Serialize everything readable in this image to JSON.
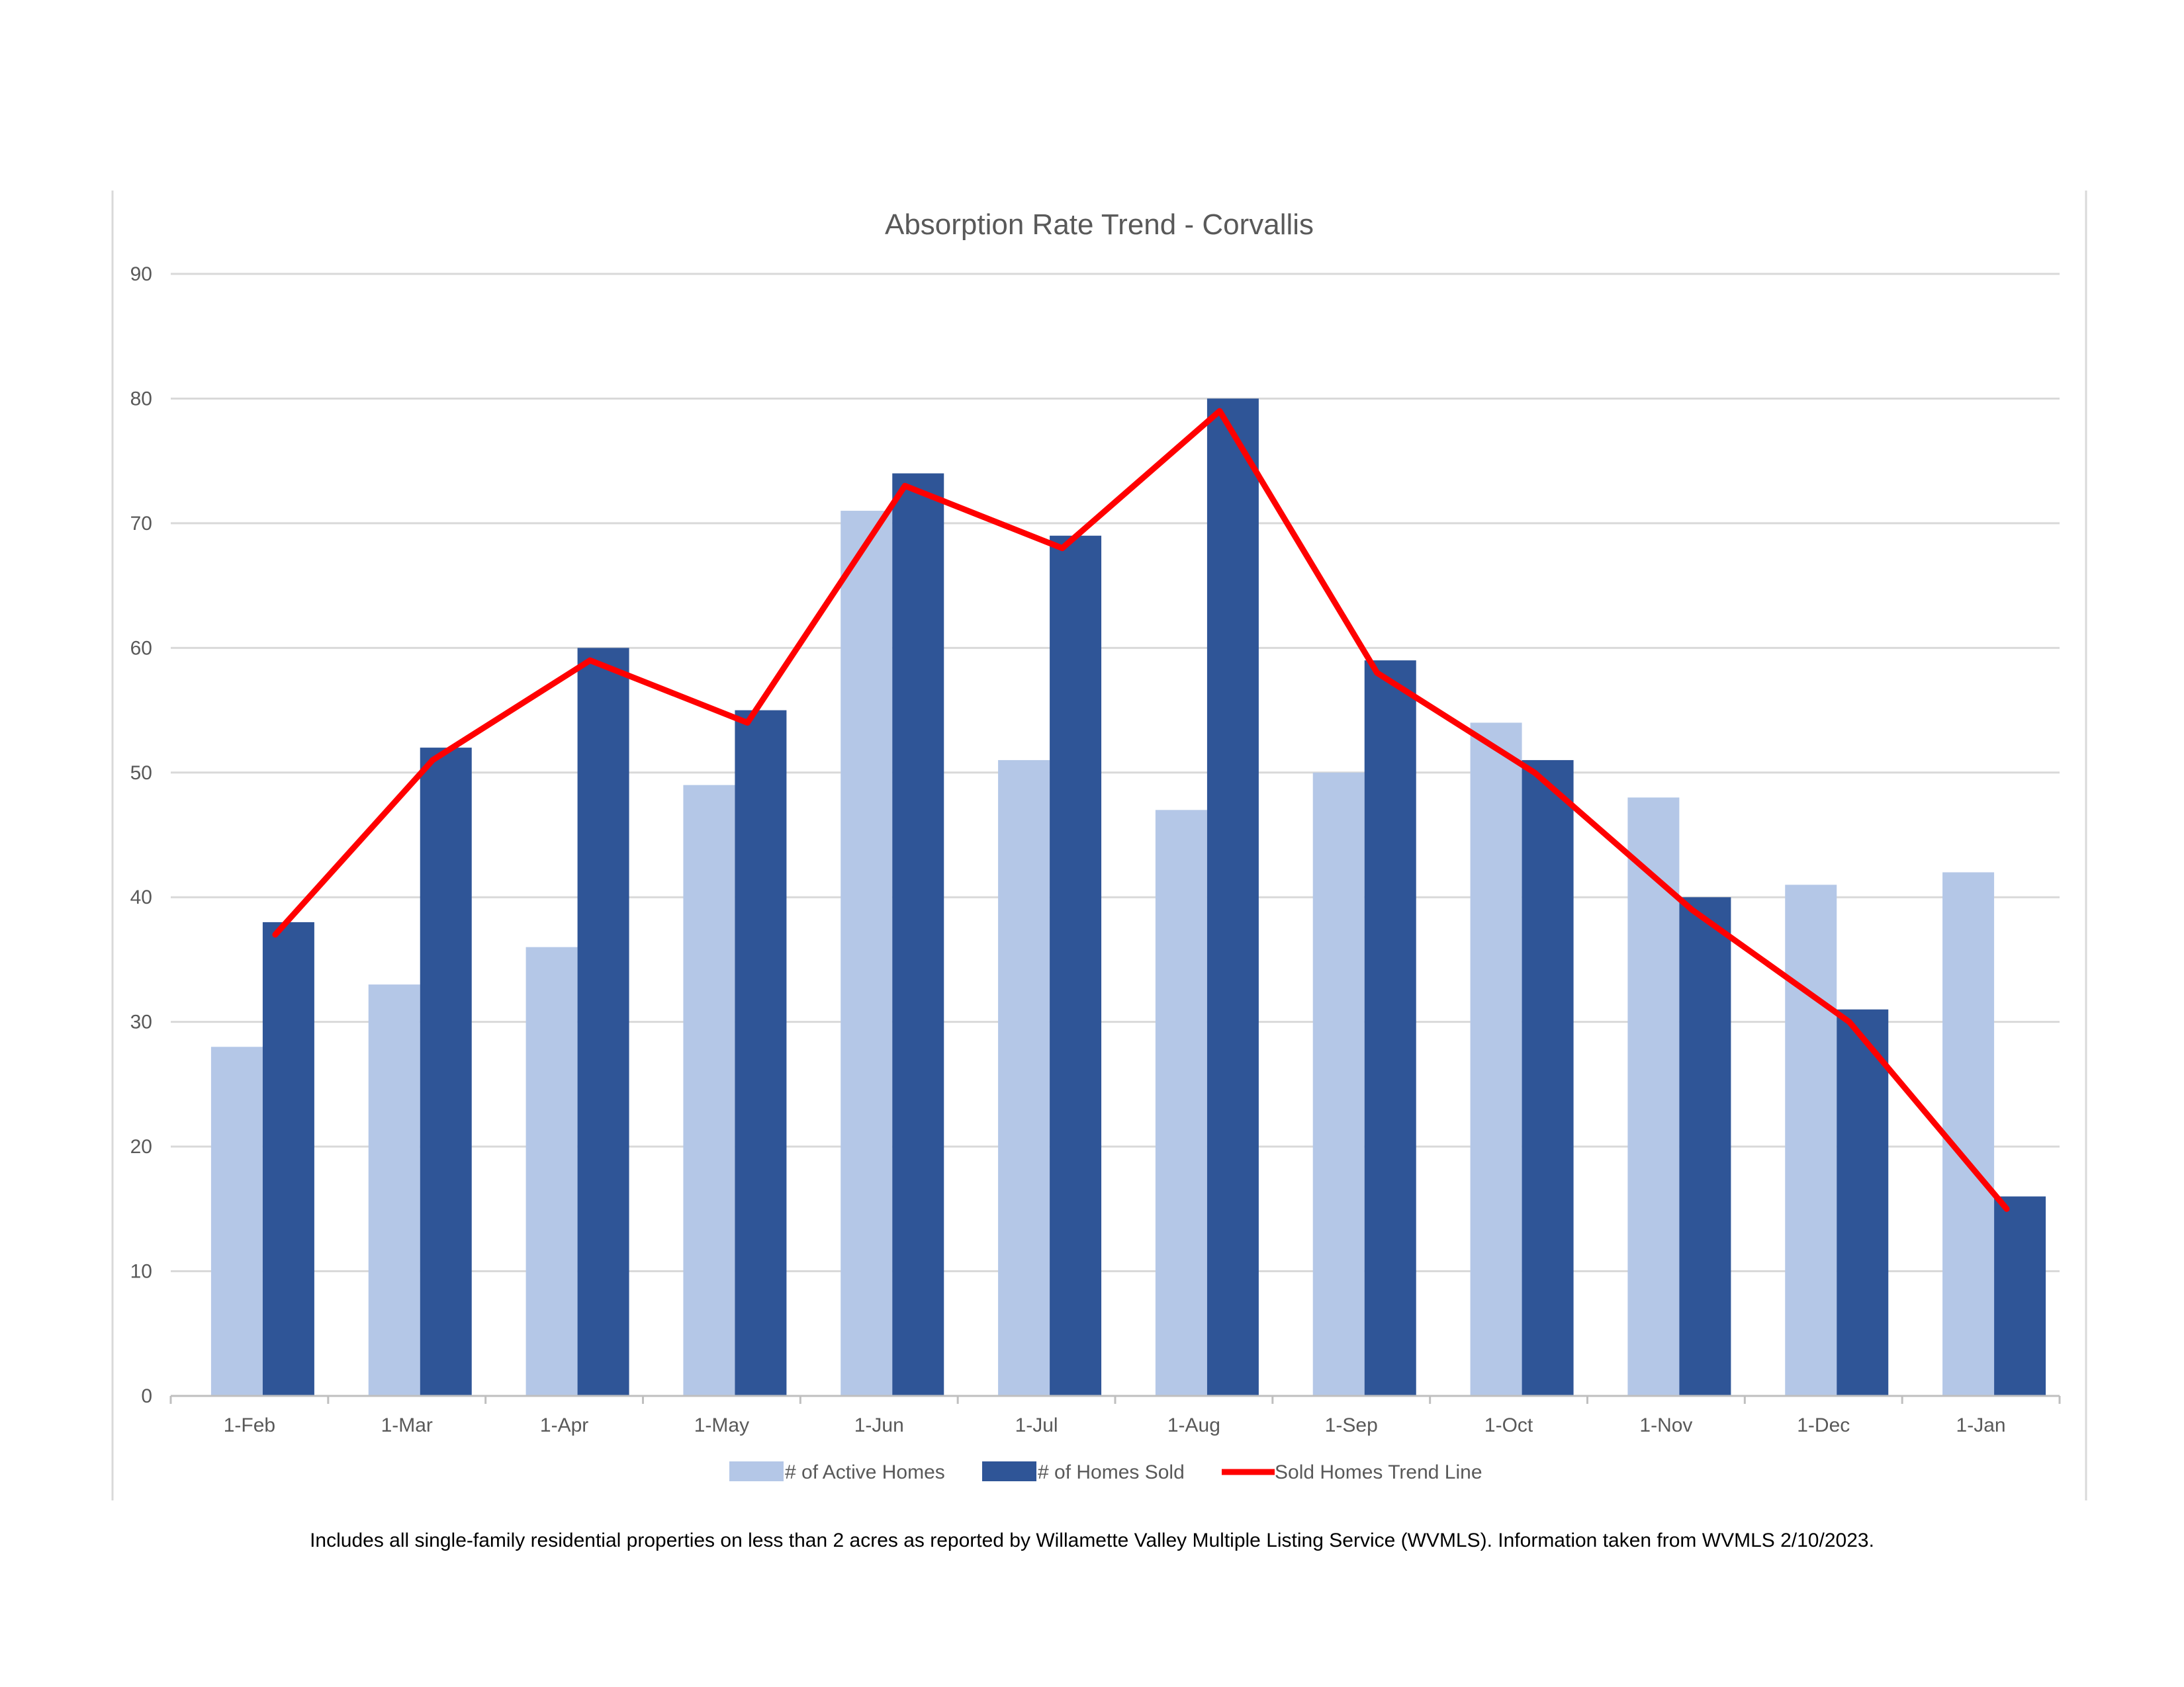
{
  "colors": {
    "active": "#b4c7e7",
    "sold": "#2f5597",
    "trend": "#ff0000",
    "grid": "#d9d9d9",
    "axis": "#bfbfbf",
    "text": "#595959",
    "frame": "#d9d9d9"
  },
  "chart_data": {
    "type": "bar",
    "title": "Absorption Rate Trend - Corvallis",
    "xlabel": "",
    "ylabel": "",
    "ylim": [
      0,
      90
    ],
    "y_ticks": [
      0,
      10,
      20,
      30,
      40,
      50,
      60,
      70,
      80,
      90
    ],
    "grid": true,
    "legend_position": "bottom",
    "categories": [
      "1-Feb",
      "1-Mar",
      "1-Apr",
      "1-May",
      "1-Jun",
      "1-Jul",
      "1-Aug",
      "1-Sep",
      "1-Oct",
      "1-Nov",
      "1-Dec",
      "1-Jan"
    ],
    "series": [
      {
        "name": "# of Active Homes",
        "type": "bar",
        "values": [
          28,
          33,
          36,
          49,
          71,
          51,
          47,
          50,
          54,
          48,
          41,
          42
        ]
      },
      {
        "name": "# of Homes Sold",
        "type": "bar",
        "values": [
          38,
          52,
          60,
          55,
          74,
          69,
          80,
          59,
          51,
          40,
          31,
          16
        ]
      },
      {
        "name": "Sold Homes Trend Line",
        "type": "line",
        "values": [
          37,
          51,
          59,
          54,
          73,
          68,
          79,
          58,
          50,
          39,
          30,
          15
        ]
      }
    ]
  },
  "footnote": "Includes all single-family residential properties on less than 2 acres as reported by Willamette Valley Multiple Listing Service (WVMLS). Information taken from WVMLS 2/10/2023."
}
